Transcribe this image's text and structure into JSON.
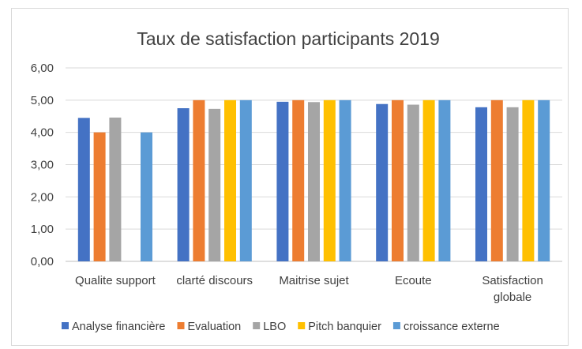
{
  "chart_data": {
    "type": "bar",
    "title": "Taux de satisfaction participants 2019",
    "categories": [
      [
        "Qualite support"
      ],
      [
        "clarté discours"
      ],
      [
        "Maitrise sujet"
      ],
      [
        "Ecoute"
      ],
      [
        "Satisfaction",
        "globale"
      ]
    ],
    "series": [
      {
        "name": "Analyse financière",
        "color": "#4472C4",
        "values": [
          4.45,
          4.75,
          4.95,
          4.88,
          4.78
        ]
      },
      {
        "name": "Evaluation",
        "color": "#ED7D31",
        "values": [
          4.0,
          5.0,
          5.0,
          5.0,
          5.0
        ]
      },
      {
        "name": "LBO",
        "color": "#A5A5A5",
        "values": [
          4.46,
          4.73,
          4.94,
          4.86,
          4.78
        ]
      },
      {
        "name": "Pitch banquier",
        "color": "#FFC000",
        "values": [
          null,
          5.0,
          5.0,
          5.0,
          5.0
        ]
      },
      {
        "name": "croissance externe",
        "color": "#5B9BD5",
        "values": [
          4.0,
          5.0,
          5.0,
          5.0,
          5.0
        ]
      }
    ],
    "ylim": [
      0,
      6
    ],
    "yticks": [
      "0,00",
      "1,00",
      "2,00",
      "3,00",
      "4,00",
      "5,00",
      "6,00"
    ],
    "xlabel": "",
    "ylabel": "",
    "grid": true,
    "legend_position": "bottom"
  }
}
